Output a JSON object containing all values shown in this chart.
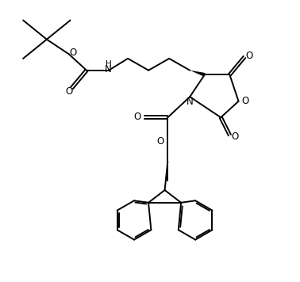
{
  "line_color": "#000000",
  "bg_color": "#ffffff",
  "lw": 1.4,
  "figure_size": [
    3.78,
    3.56
  ],
  "dpi": 100,
  "xlim": [
    0,
    10
  ],
  "ylim": [
    0,
    9.5
  ]
}
